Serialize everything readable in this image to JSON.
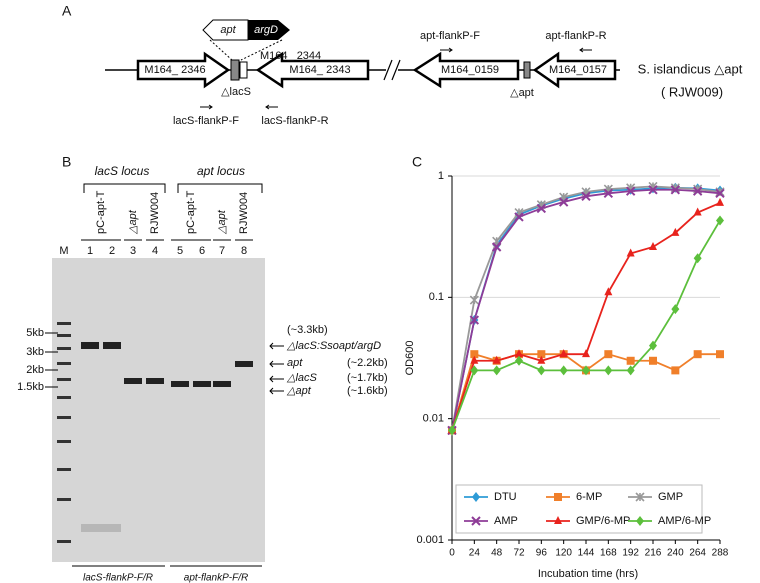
{
  "panel_a": {
    "label": "A",
    "insert": [
      "apt",
      "argD"
    ],
    "genes": [
      "M164_ 2346",
      "M164_ 2344",
      "M164_ 2343",
      "M164_0159",
      "M164_0157"
    ],
    "deletions": [
      "△lacS",
      "△apt"
    ],
    "primers": [
      "lacS-flankP-F",
      "lacS-flankP-R",
      "apt-flankP-F",
      "apt-flankP-R"
    ],
    "strain": [
      "S. islandicus △apt",
      "( RJW009)"
    ]
  },
  "panel_b": {
    "label": "B",
    "loci": [
      "lacS locus",
      "apt locus"
    ],
    "lane_groups": [
      "pC-apt-T",
      "△apt",
      "RJW004",
      "pC-apt-T",
      "△apt",
      "RJW004"
    ],
    "lanes": [
      "M",
      "1",
      "2",
      "3",
      "4",
      "5",
      "6",
      "7",
      "8"
    ],
    "ladder": [
      "5kb",
      "3kb",
      "2kb",
      "1.5kb"
    ],
    "annotations": [
      "(~3.3kb)",
      "△lacS:Ssoapt/argD",
      "apt",
      "(~2.2kb)",
      "△lacS",
      "(~1.7kb)",
      "△apt",
      "(~1.6kb)"
    ],
    "primer_sets": [
      "lacS-flankP-F/R",
      "apt-flankP-F/R"
    ]
  },
  "chart_data": {
    "type": "line",
    "panel_label": "C",
    "y_label": "OD600",
    "x_label": "Incubation time (hrs)",
    "x": [
      0,
      24,
      48,
      72,
      96,
      120,
      144,
      168,
      192,
      216,
      240,
      264,
      288
    ],
    "xlim": [
      0,
      288
    ],
    "xticks": [
      0,
      24,
      48,
      72,
      96,
      120,
      144,
      168,
      192,
      216,
      240,
      264,
      288
    ],
    "ylim": [
      0.001,
      1
    ],
    "yticks": [
      0.001,
      0.01,
      0.1,
      1
    ],
    "log_y": true,
    "grid": true,
    "legend": "bottom",
    "series": [
      {
        "name": "DTU",
        "color": "#2e9bd6",
        "marker": "diamond",
        "values": [
          0.008,
          0.065,
          0.27,
          0.48,
          0.57,
          0.65,
          0.72,
          0.76,
          0.77,
          0.79,
          0.8,
          0.79,
          0.76
        ]
      },
      {
        "name": "6-MP",
        "color": "#f07f2a",
        "marker": "square",
        "values": [
          0.008,
          0.034,
          0.03,
          0.034,
          0.034,
          0.034,
          0.025,
          0.034,
          0.03,
          0.03,
          0.025,
          0.034,
          0.034
        ]
      },
      {
        "name": "GMP",
        "color": "#999999",
        "marker": "star",
        "values": [
          0.008,
          0.095,
          0.29,
          0.5,
          0.58,
          0.67,
          0.74,
          0.78,
          0.8,
          0.82,
          0.8,
          0.78,
          0.74
        ]
      },
      {
        "name": "AMP",
        "color": "#8e3c97",
        "marker": "cross",
        "values": [
          0.008,
          0.065,
          0.26,
          0.46,
          0.54,
          0.61,
          0.68,
          0.72,
          0.75,
          0.77,
          0.77,
          0.75,
          0.72
        ]
      },
      {
        "name": "GMP/6-MP",
        "color": "#e8231d",
        "marker": "triangle",
        "values": [
          0.008,
          0.03,
          0.03,
          0.034,
          0.03,
          0.034,
          0.034,
          0.11,
          0.23,
          0.26,
          0.34,
          0.5,
          0.6
        ]
      },
      {
        "name": "AMP/6-MP",
        "color": "#5cbf3c",
        "marker": "diamond",
        "values": [
          0.008,
          0.025,
          0.025,
          0.03,
          0.025,
          0.025,
          0.025,
          0.025,
          0.025,
          0.04,
          0.08,
          0.21,
          0.43
        ]
      }
    ]
  }
}
